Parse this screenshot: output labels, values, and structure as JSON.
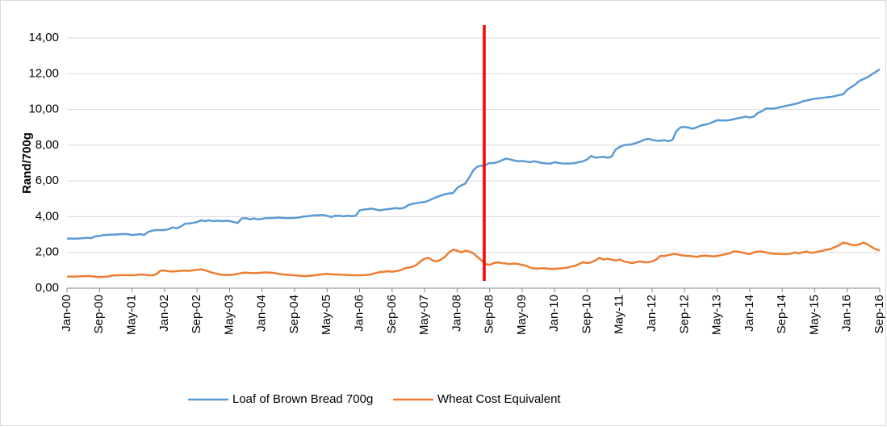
{
  "chart_data": {
    "type": "line",
    "y_label": "Rand/700g",
    "categories": [
      "Jan-00",
      null,
      null,
      null,
      null,
      null,
      null,
      null,
      "Sep-00",
      null,
      null,
      null,
      null,
      null,
      null,
      null,
      "May-01",
      null,
      null,
      null,
      null,
      null,
      null,
      null,
      "Jan-02",
      null,
      null,
      null,
      null,
      null,
      null,
      null,
      "Sep-02",
      null,
      null,
      null,
      null,
      null,
      null,
      null,
      "May-03",
      null,
      null,
      null,
      null,
      null,
      null,
      null,
      "Jan-04",
      null,
      null,
      null,
      null,
      null,
      null,
      null,
      "Sep-04",
      null,
      null,
      null,
      null,
      null,
      null,
      null,
      "May-05",
      null,
      null,
      null,
      null,
      null,
      null,
      null,
      "Jan-06",
      null,
      null,
      null,
      null,
      null,
      null,
      null,
      "Sep-06",
      null,
      null,
      null,
      null,
      null,
      null,
      null,
      "May-07",
      null,
      null,
      null,
      null,
      null,
      null,
      null,
      "Jan-08",
      null,
      null,
      null,
      null,
      null,
      null,
      null,
      "Sep-08",
      null,
      null,
      null,
      null,
      null,
      null,
      null,
      "May-09",
      null,
      null,
      null,
      null,
      null,
      null,
      null,
      "Jan-10",
      null,
      null,
      null,
      null,
      null,
      null,
      null,
      "Sep-10",
      null,
      null,
      null,
      null,
      null,
      null,
      null,
      "May-11",
      null,
      null,
      null,
      null,
      null,
      null,
      null,
      "Jan-12",
      null,
      null,
      null,
      null,
      null,
      null,
      null,
      "Sep-12",
      null,
      null,
      null,
      null,
      null,
      null,
      null,
      "May-13",
      null,
      null,
      null,
      null,
      null,
      null,
      null,
      "Jan-14",
      null,
      null,
      null,
      null,
      null,
      null,
      null,
      "Sep-14",
      null,
      null,
      null,
      null,
      null,
      null,
      null,
      "May-15",
      null,
      null,
      null,
      null,
      null,
      null,
      null,
      "Jan-16",
      null,
      null,
      null,
      null,
      null,
      null,
      null,
      "Sep-16"
    ],
    "series": [
      {
        "name": "Loaf of Brown Bread 700g",
        "color": "#5b9bd5",
        "values": [
          2.78,
          2.77,
          2.77,
          2.78,
          2.8,
          2.82,
          2.8,
          2.9,
          2.92,
          2.97,
          2.98,
          3.0,
          3.0,
          3.02,
          3.03,
          3.02,
          2.97,
          3.0,
          3.02,
          2.98,
          3.15,
          3.22,
          3.25,
          3.25,
          3.25,
          3.3,
          3.4,
          3.35,
          3.45,
          3.6,
          3.62,
          3.65,
          3.7,
          3.8,
          3.75,
          3.8,
          3.75,
          3.78,
          3.75,
          3.77,
          3.76,
          3.7,
          3.65,
          3.9,
          3.92,
          3.85,
          3.9,
          3.85,
          3.88,
          3.92,
          3.92,
          3.93,
          3.95,
          3.93,
          3.92,
          3.92,
          3.93,
          3.95,
          4.0,
          4.02,
          4.05,
          4.08,
          4.08,
          4.1,
          4.05,
          3.98,
          4.05,
          4.05,
          4.02,
          4.05,
          4.03,
          4.05,
          4.35,
          4.4,
          4.42,
          4.45,
          4.4,
          4.35,
          4.4,
          4.42,
          4.45,
          4.48,
          4.45,
          4.5,
          4.65,
          4.72,
          4.75,
          4.8,
          4.82,
          4.9,
          5.0,
          5.1,
          5.18,
          5.25,
          5.3,
          5.32,
          5.6,
          5.75,
          5.85,
          6.2,
          6.6,
          6.8,
          6.85,
          6.9,
          7.0,
          7.0,
          7.05,
          7.15,
          7.25,
          7.2,
          7.15,
          7.1,
          7.12,
          7.08,
          7.05,
          7.1,
          7.05,
          7.0,
          6.98,
          6.97,
          7.05,
          7.0,
          6.98,
          6.97,
          6.98,
          7.0,
          7.05,
          7.1,
          7.2,
          7.4,
          7.3,
          7.32,
          7.35,
          7.3,
          7.35,
          7.75,
          7.9,
          8.0,
          8.02,
          8.05,
          8.12,
          8.2,
          8.3,
          8.35,
          8.3,
          8.25,
          8.25,
          8.28,
          8.22,
          8.3,
          8.8,
          9.0,
          9.02,
          8.98,
          8.92,
          9.0,
          9.1,
          9.15,
          9.2,
          9.3,
          9.4,
          9.38,
          9.38,
          9.4,
          9.45,
          9.5,
          9.55,
          9.6,
          9.55,
          9.6,
          9.8,
          9.9,
          10.05,
          10.05,
          10.05,
          10.1,
          10.15,
          10.2,
          10.25,
          10.3,
          10.35,
          10.45,
          10.5,
          10.55,
          10.6,
          10.62,
          10.65,
          10.68,
          10.7,
          10.75,
          10.8,
          10.85,
          11.1,
          11.25,
          11.4,
          11.6,
          11.7,
          11.8,
          11.95,
          12.1,
          12.25
        ]
      },
      {
        "name": "Wheat Cost Equivalent",
        "color": "#ed7d31",
        "values": [
          0.65,
          0.65,
          0.65,
          0.66,
          0.68,
          0.68,
          0.67,
          0.64,
          0.62,
          0.63,
          0.65,
          0.7,
          0.72,
          0.72,
          0.73,
          0.73,
          0.72,
          0.74,
          0.76,
          0.75,
          0.72,
          0.72,
          0.78,
          0.98,
          0.98,
          0.95,
          0.93,
          0.95,
          0.97,
          0.98,
          0.97,
          1.0,
          1.03,
          1.05,
          1.0,
          0.92,
          0.85,
          0.8,
          0.75,
          0.74,
          0.74,
          0.76,
          0.8,
          0.85,
          0.87,
          0.85,
          0.84,
          0.85,
          0.87,
          0.88,
          0.87,
          0.85,
          0.8,
          0.77,
          0.75,
          0.74,
          0.72,
          0.7,
          0.69,
          0.68,
          0.7,
          0.72,
          0.75,
          0.78,
          0.8,
          0.78,
          0.77,
          0.76,
          0.75,
          0.74,
          0.73,
          0.72,
          0.72,
          0.73,
          0.75,
          0.78,
          0.85,
          0.9,
          0.92,
          0.95,
          0.92,
          0.95,
          1.0,
          1.1,
          1.15,
          1.2,
          1.3,
          1.5,
          1.65,
          1.7,
          1.55,
          1.5,
          1.6,
          1.75,
          2.0,
          2.15,
          2.1,
          2.0,
          2.1,
          2.05,
          1.95,
          1.75,
          1.55,
          1.35,
          1.3,
          1.4,
          1.45,
          1.4,
          1.38,
          1.35,
          1.38,
          1.35,
          1.3,
          1.25,
          1.15,
          1.1,
          1.1,
          1.12,
          1.1,
          1.08,
          1.08,
          1.1,
          1.12,
          1.15,
          1.2,
          1.25,
          1.35,
          1.45,
          1.4,
          1.45,
          1.55,
          1.7,
          1.6,
          1.65,
          1.6,
          1.55,
          1.6,
          1.5,
          1.45,
          1.4,
          1.45,
          1.5,
          1.45,
          1.45,
          1.5,
          1.6,
          1.8,
          1.8,
          1.85,
          1.9,
          1.9,
          1.85,
          1.82,
          1.8,
          1.78,
          1.75,
          1.8,
          1.82,
          1.8,
          1.78,
          1.8,
          1.85,
          1.9,
          1.95,
          2.05,
          2.05,
          2.0,
          1.95,
          1.9,
          2.0,
          2.05,
          2.05,
          2.0,
          1.95,
          1.92,
          1.92,
          1.9,
          1.9,
          1.92,
          2.0,
          1.95,
          2.0,
          2.05,
          1.98,
          2.0,
          2.05,
          2.1,
          2.15,
          2.2,
          2.3,
          2.4,
          2.55,
          2.5,
          2.42,
          2.4,
          2.45,
          2.55,
          2.45,
          2.3,
          2.18,
          2.1
        ]
      }
    ],
    "ylim": [
      0,
      14
    ],
    "yticks": [
      {
        "value": 0,
        "label": "0,00"
      },
      {
        "value": 2,
        "label": "2,00"
      },
      {
        "value": 4,
        "label": "4,00"
      },
      {
        "value": 6,
        "label": "6,00"
      },
      {
        "value": 8,
        "label": "8,00"
      },
      {
        "value": 10,
        "label": "10,00"
      },
      {
        "value": 12,
        "label": "12,00"
      },
      {
        "value": 14,
        "label": "14,00"
      }
    ],
    "grid": true
  }
}
